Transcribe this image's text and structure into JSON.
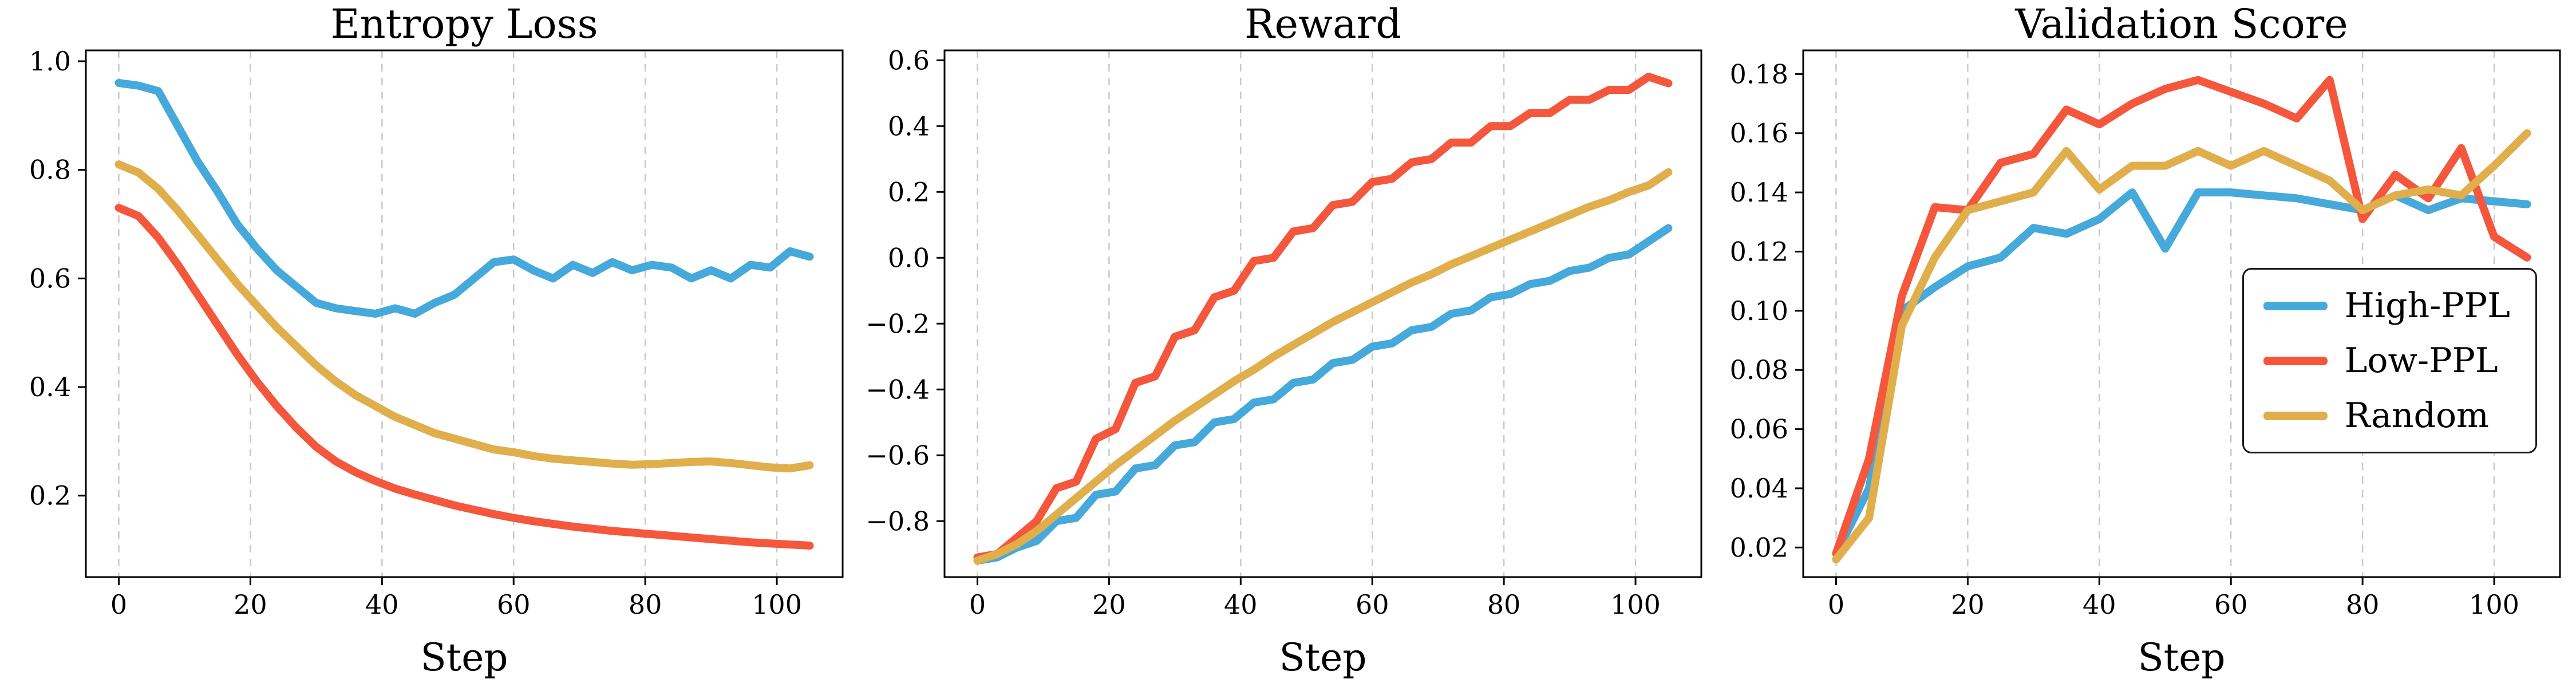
{
  "page": {
    "background": "#ffffff"
  },
  "legend": {
    "items": [
      {
        "label": "High-PPL",
        "color": "#45A9DB"
      },
      {
        "label": "Low-PPL",
        "color": "#F4573C"
      },
      {
        "label": "Random",
        "color": "#E0AE4B"
      }
    ]
  },
  "chart_data": [
    {
      "type": "line",
      "title": "Entropy Loss",
      "xlabel": "Step",
      "xlim": [
        -5,
        110
      ],
      "ylim": [
        0.05,
        1.02
      ],
      "xticks": [
        0,
        20,
        40,
        60,
        80,
        100
      ],
      "xtick_labels": [
        "0",
        "20",
        "40",
        "60",
        "80",
        "100"
      ],
      "yticks": [
        0.2,
        0.4,
        0.6,
        0.8,
        1.0
      ],
      "ytick_labels": [
        "0.2",
        "0.4",
        "0.6",
        "0.8",
        "1.0"
      ],
      "grid": "x-dashed",
      "grid_color": "#c9c9c9",
      "legend_position": "none",
      "x": [
        0,
        3,
        6,
        9,
        12,
        15,
        18,
        21,
        24,
        27,
        30,
        33,
        36,
        39,
        42,
        45,
        48,
        51,
        54,
        57,
        60,
        63,
        66,
        69,
        72,
        75,
        78,
        81,
        84,
        87,
        90,
        93,
        96,
        99,
        102,
        105
      ],
      "series": [
        {
          "name": "High-PPL",
          "color": "#45A9DB",
          "values": [
            0.96,
            0.955,
            0.945,
            0.88,
            0.815,
            0.76,
            0.7,
            0.655,
            0.615,
            0.585,
            0.555,
            0.545,
            0.54,
            0.535,
            0.545,
            0.535,
            0.555,
            0.57,
            0.6,
            0.63,
            0.635,
            0.615,
            0.6,
            0.625,
            0.61,
            0.63,
            0.615,
            0.625,
            0.62,
            0.6,
            0.615,
            0.6,
            0.625,
            0.62,
            0.65,
            0.64
          ]
        },
        {
          "name": "Low-PPL",
          "color": "#F4573C",
          "values": [
            0.73,
            0.715,
            0.675,
            0.625,
            0.57,
            0.515,
            0.46,
            0.41,
            0.365,
            0.325,
            0.29,
            0.263,
            0.243,
            0.227,
            0.213,
            0.202,
            0.192,
            0.182,
            0.174,
            0.166,
            0.159,
            0.153,
            0.148,
            0.143,
            0.139,
            0.135,
            0.132,
            0.129,
            0.126,
            0.123,
            0.12,
            0.117,
            0.114,
            0.112,
            0.11,
            0.108
          ]
        },
        {
          "name": "Random",
          "color": "#E0AE4B",
          "values": [
            0.81,
            0.795,
            0.765,
            0.725,
            0.68,
            0.635,
            0.59,
            0.55,
            0.51,
            0.475,
            0.44,
            0.41,
            0.385,
            0.365,
            0.345,
            0.33,
            0.315,
            0.305,
            0.295,
            0.285,
            0.28,
            0.273,
            0.268,
            0.265,
            0.262,
            0.259,
            0.257,
            0.258,
            0.26,
            0.262,
            0.263,
            0.26,
            0.256,
            0.252,
            0.25,
            0.256
          ]
        }
      ]
    },
    {
      "type": "line",
      "title": "Reward",
      "xlabel": "Step",
      "xlim": [
        -5,
        110
      ],
      "ylim": [
        -0.97,
        0.63
      ],
      "xticks": [
        0,
        20,
        40,
        60,
        80,
        100
      ],
      "xtick_labels": [
        "0",
        "20",
        "40",
        "60",
        "80",
        "100"
      ],
      "yticks": [
        -0.8,
        -0.6,
        -0.4,
        -0.2,
        0.0,
        0.2,
        0.4,
        0.6
      ],
      "ytick_labels": [
        "−0.8",
        "−0.6",
        "−0.4",
        "−0.2",
        "0.0",
        "0.2",
        "0.4",
        "0.6"
      ],
      "grid": "x-dashed",
      "grid_color": "#c9c9c9",
      "legend_position": "none",
      "x": [
        0,
        3,
        6,
        9,
        12,
        15,
        18,
        21,
        24,
        27,
        30,
        33,
        36,
        39,
        42,
        45,
        48,
        51,
        54,
        57,
        60,
        63,
        66,
        69,
        72,
        75,
        78,
        81,
        84,
        87,
        90,
        93,
        96,
        99,
        102,
        105
      ],
      "series": [
        {
          "name": "High-PPL",
          "color": "#45A9DB",
          "values": [
            -0.92,
            -0.91,
            -0.88,
            -0.86,
            -0.8,
            -0.79,
            -0.72,
            -0.71,
            -0.64,
            -0.63,
            -0.57,
            -0.56,
            -0.5,
            -0.49,
            -0.44,
            -0.43,
            -0.38,
            -0.37,
            -0.32,
            -0.31,
            -0.27,
            -0.26,
            -0.22,
            -0.21,
            -0.17,
            -0.16,
            -0.12,
            -0.11,
            -0.08,
            -0.07,
            -0.04,
            -0.03,
            0.0,
            0.01,
            0.05,
            0.09
          ]
        },
        {
          "name": "Low-PPL",
          "color": "#F4573C",
          "values": [
            -0.91,
            -0.9,
            -0.85,
            -0.8,
            -0.7,
            -0.68,
            -0.55,
            -0.52,
            -0.38,
            -0.36,
            -0.24,
            -0.22,
            -0.12,
            -0.1,
            -0.01,
            0.0,
            0.08,
            0.09,
            0.16,
            0.17,
            0.23,
            0.24,
            0.29,
            0.3,
            0.35,
            0.35,
            0.4,
            0.4,
            0.44,
            0.44,
            0.48,
            0.48,
            0.51,
            0.51,
            0.55,
            0.53
          ]
        },
        {
          "name": "Random",
          "color": "#E0AE4B",
          "values": [
            -0.92,
            -0.9,
            -0.87,
            -0.83,
            -0.78,
            -0.73,
            -0.68,
            -0.63,
            -0.585,
            -0.54,
            -0.495,
            -0.455,
            -0.415,
            -0.375,
            -0.34,
            -0.3,
            -0.265,
            -0.23,
            -0.195,
            -0.165,
            -0.135,
            -0.105,
            -0.075,
            -0.05,
            -0.02,
            0.005,
            0.03,
            0.055,
            0.08,
            0.105,
            0.13,
            0.155,
            0.175,
            0.2,
            0.22,
            0.26
          ]
        }
      ]
    },
    {
      "type": "line",
      "title": "Validation Score",
      "xlabel": "Step",
      "xlim": [
        -5,
        110
      ],
      "ylim": [
        0.01,
        0.188
      ],
      "xticks": [
        0,
        20,
        40,
        60,
        80,
        100
      ],
      "xtick_labels": [
        "0",
        "20",
        "40",
        "60",
        "80",
        "100"
      ],
      "yticks": [
        0.02,
        0.04,
        0.06,
        0.08,
        0.1,
        0.12,
        0.14,
        0.16,
        0.18
      ],
      "ytick_labels": [
        "0.02",
        "0.04",
        "0.06",
        "0.08",
        "0.10",
        "0.12",
        "0.14",
        "0.16",
        "0.18"
      ],
      "grid": "x-dashed",
      "grid_color": "#c9c9c9",
      "legend_position": "center-right",
      "x": [
        0,
        5,
        10,
        15,
        20,
        25,
        30,
        35,
        40,
        45,
        50,
        55,
        60,
        65,
        70,
        75,
        80,
        85,
        90,
        95,
        100,
        105
      ],
      "series": [
        {
          "name": "High-PPL",
          "color": "#45A9DB",
          "values": [
            0.018,
            0.04,
            0.1,
            0.108,
            0.115,
            0.118,
            0.128,
            0.126,
            0.131,
            0.14,
            0.121,
            0.14,
            0.14,
            0.139,
            0.138,
            0.136,
            0.134,
            0.139,
            0.134,
            0.138,
            0.137,
            0.136
          ]
        },
        {
          "name": "Low-PPL",
          "color": "#F4573C",
          "values": [
            0.018,
            0.05,
            0.105,
            0.135,
            0.134,
            0.15,
            0.153,
            0.168,
            0.163,
            0.17,
            0.175,
            0.178,
            0.174,
            0.17,
            0.165,
            0.178,
            0.131,
            0.146,
            0.138,
            0.155,
            0.125,
            0.118
          ]
        },
        {
          "name": "Random",
          "color": "#E0AE4B",
          "values": [
            0.016,
            0.03,
            0.095,
            0.118,
            0.134,
            0.137,
            0.14,
            0.154,
            0.141,
            0.149,
            0.149,
            0.154,
            0.149,
            0.154,
            0.149,
            0.144,
            0.134,
            0.139,
            0.141,
            0.139,
            0.149,
            0.16
          ]
        }
      ]
    }
  ]
}
